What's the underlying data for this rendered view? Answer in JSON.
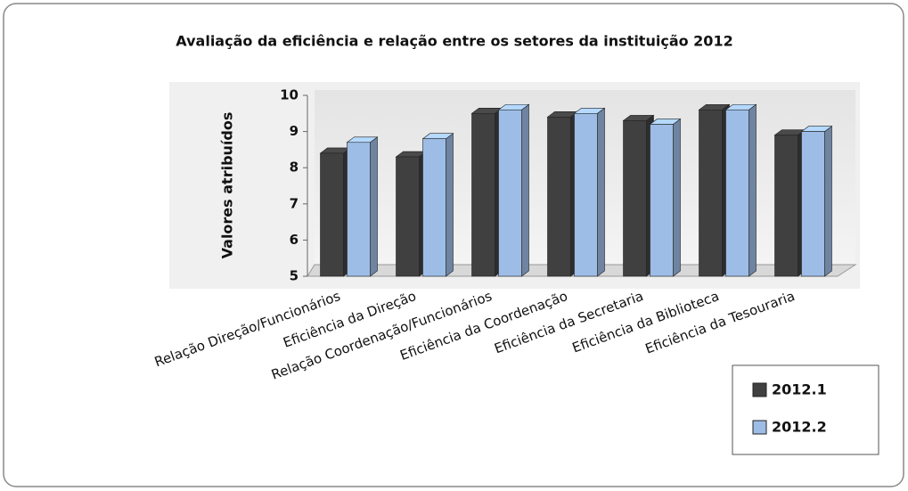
{
  "chart_data": {
    "type": "bar3d",
    "title": "Avaliação da eficiência e relação entre os setores da instituição  2012",
    "y_label": "Valores atribuídos",
    "categories": [
      "Relação Direção/Funcionários",
      "Eficiência da Direção",
      "Relação Coordenação/Funcionários",
      "Eficiência da Coordenação",
      "Eficiência da Secretaria",
      "Eficiência da Biblioteca",
      "Eficiência da Tesouraria"
    ],
    "series": [
      {
        "name": "2012.1",
        "color": "#404040",
        "values": [
          8.4,
          8.3,
          9.5,
          9.4,
          9.3,
          9.6,
          8.9
        ]
      },
      {
        "name": "2012.2",
        "color": "#9dbde6",
        "values": [
          8.7,
          8.8,
          9.6,
          9.5,
          9.2,
          9.6,
          9.0
        ]
      }
    ],
    "ylim": [
      5,
      10
    ],
    "yticks": [
      5,
      6,
      7,
      8,
      9,
      10
    ],
    "legend": "bottom-right"
  }
}
